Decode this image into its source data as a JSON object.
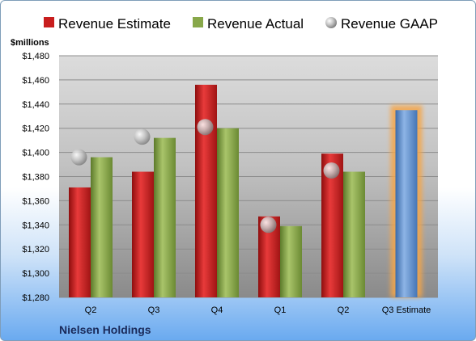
{
  "chart_data": {
    "type": "bar",
    "unit_label": "$millions",
    "footer": "Nielsen Holdings",
    "categories": [
      "Q2",
      "Q3",
      "Q4",
      "Q1",
      "Q2",
      "Q3 Estimate"
    ],
    "series": [
      {
        "name": "Revenue Estimate",
        "kind": "bar",
        "color": "#c81e1e",
        "values": [
          1371,
          1384,
          1456,
          1347,
          1399,
          null
        ]
      },
      {
        "name": "Revenue Actual",
        "kind": "bar",
        "color": "#88a84a",
        "values": [
          1396,
          1412,
          1420,
          1339,
          1384,
          null
        ]
      },
      {
        "name": "Revenue GAAP",
        "kind": "marker",
        "color": "#b8b8b8",
        "values": [
          1396,
          1413,
          1421,
          1340,
          1385,
          null
        ]
      },
      {
        "name": "",
        "kind": "bar",
        "color": "#5b8fd0",
        "highlight": "#f5a64a",
        "values": [
          null,
          null,
          null,
          null,
          null,
          1435
        ]
      }
    ],
    "ylim": [
      1280,
      1480
    ],
    "yticks": [
      "$1,280",
      "$1,300",
      "$1,320",
      "$1,340",
      "$1,360",
      "$1,380",
      "$1,400",
      "$1,420",
      "$1,440",
      "$1,460",
      "$1,480"
    ],
    "grid": true,
    "legend": "top"
  }
}
